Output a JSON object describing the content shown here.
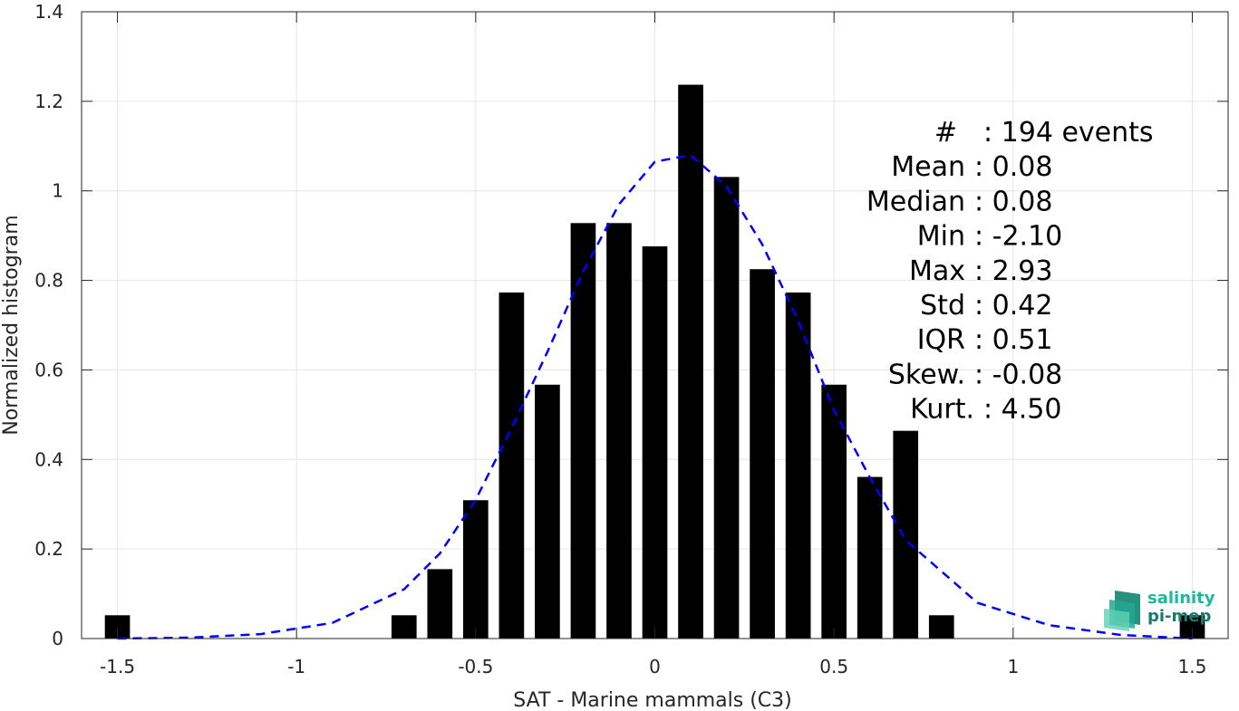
{
  "chart_data": {
    "type": "bar",
    "xlabel": "SAT - Marine mammals (C3)",
    "ylabel": "Normalized histogram",
    "xlim": [
      -1.6,
      1.6
    ],
    "ylim": [
      0,
      1.4
    ],
    "xticks": [
      -1.5,
      -1,
      -0.5,
      0,
      0.5,
      1,
      1.5
    ],
    "xtick_labels": [
      "-1.5",
      "-1",
      "-0.5",
      "0",
      "0.5",
      "1",
      "1.5"
    ],
    "yticks": [
      0,
      0.2,
      0.4,
      0.6,
      0.8,
      1,
      1.2,
      1.4
    ],
    "ytick_labels": [
      "0",
      "0.2",
      "0.4",
      "0.6",
      "0.8",
      "1",
      "1.2",
      "1.4"
    ],
    "grid": true,
    "bar_width": 0.07,
    "bar_color": "#000000",
    "bars": [
      {
        "x": -1.5,
        "value": 0.052
      },
      {
        "x": -0.7,
        "value": 0.052
      },
      {
        "x": -0.6,
        "value": 0.155
      },
      {
        "x": -0.5,
        "value": 0.309
      },
      {
        "x": -0.4,
        "value": 0.773
      },
      {
        "x": -0.3,
        "value": 0.567
      },
      {
        "x": -0.2,
        "value": 0.928
      },
      {
        "x": -0.1,
        "value": 0.928
      },
      {
        "x": 0.0,
        "value": 0.876
      },
      {
        "x": 0.1,
        "value": 1.237
      },
      {
        "x": 0.2,
        "value": 1.031
      },
      {
        "x": 0.3,
        "value": 0.825
      },
      {
        "x": 0.4,
        "value": 0.773
      },
      {
        "x": 0.5,
        "value": 0.567
      },
      {
        "x": 0.6,
        "value": 0.361
      },
      {
        "x": 0.7,
        "value": 0.464
      },
      {
        "x": 0.8,
        "value": 0.052
      },
      {
        "x": 1.5,
        "value": 0.052
      }
    ],
    "fit_curve": {
      "style": "dashed",
      "color": "#0000ff",
      "x": [
        -1.5,
        -1.3,
        -1.1,
        -0.9,
        -0.7,
        -0.6,
        -0.5,
        -0.4,
        -0.3,
        -0.2,
        -0.1,
        0.0,
        0.1,
        0.2,
        0.3,
        0.4,
        0.5,
        0.6,
        0.7,
        0.8,
        0.9,
        1.1,
        1.3,
        1.5
      ],
      "y": [
        0.0,
        0.002,
        0.01,
        0.035,
        0.11,
        0.19,
        0.31,
        0.47,
        0.64,
        0.82,
        0.97,
        1.065,
        1.08,
        1.01,
        0.88,
        0.71,
        0.51,
        0.36,
        0.22,
        0.15,
        0.08,
        0.03,
        0.008,
        0.0
      ]
    },
    "stats": [
      {
        "label": "#",
        "value": ": 194 events"
      },
      {
        "label": "Mean",
        "value": ": 0.08"
      },
      {
        "label": "Median",
        "value": ": 0.08"
      },
      {
        "label": "Min",
        "value": ": -2.10"
      },
      {
        "label": "Max",
        "value": ": 2.93"
      },
      {
        "label": "Std",
        "value": ": 0.42"
      },
      {
        "label": "IQR",
        "value": ": 0.51"
      },
      {
        "label": "Skew.",
        "value": ": -0.08"
      },
      {
        "label": "Kurt.",
        "value": ": 4.50"
      }
    ]
  },
  "logo": {
    "line1": "salinity",
    "line2": "pi-mep",
    "colors": [
      "#1fb89a",
      "#1a7a6e"
    ]
  }
}
